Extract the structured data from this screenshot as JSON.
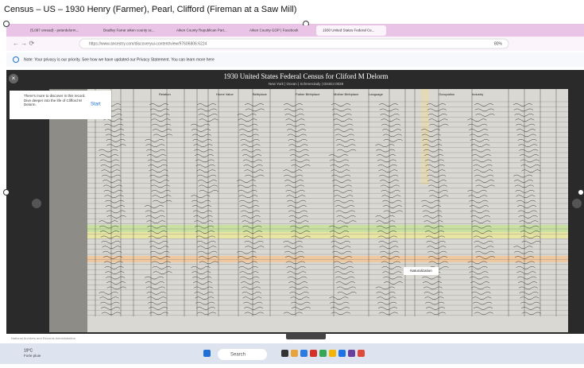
{
  "header": {
    "title": "Census – US – 1930 Henry (Farmer), Pearl, Clifford (Fireman at a Saw Mill)"
  },
  "browser": {
    "tabs": [
      "(5,097 unread) - peterdelorm...",
      "Bradley Farrar aiken county sc...",
      "Aiken County Republican Part...",
      "Aiken County GOP | Facebook",
      "1930 United States Federal Ce..."
    ],
    "url": "https://www.ancestry.com/discoveryui-content/view/97606806:6224",
    "zoom": "80%",
    "notice": "Note: Your privacy is our priority. See how we have updated our Privacy Statement. You can learn more here"
  },
  "viewer": {
    "title": "1930 United States Federal Census for Cliford M Delorm",
    "breadcrumb": "New York  |  Ocean  |  Schenectady  |  District 0028",
    "hint": "There's more to discover in this record. Dive deeper into the life of Clifford M Delorm.",
    "hint_button": "Start",
    "columns": [
      "Relation",
      "Home Value",
      "Birthplace",
      "Father Birthplace",
      "Mother Birthplace",
      "Language",
      "Occupation",
      "Industry"
    ],
    "tooltip": "Naturalization",
    "footer": "National Archives and Records Administration"
  },
  "taskbar": {
    "weather_temp": "19°C",
    "weather_text": "Forte pluie",
    "search": "Search"
  }
}
